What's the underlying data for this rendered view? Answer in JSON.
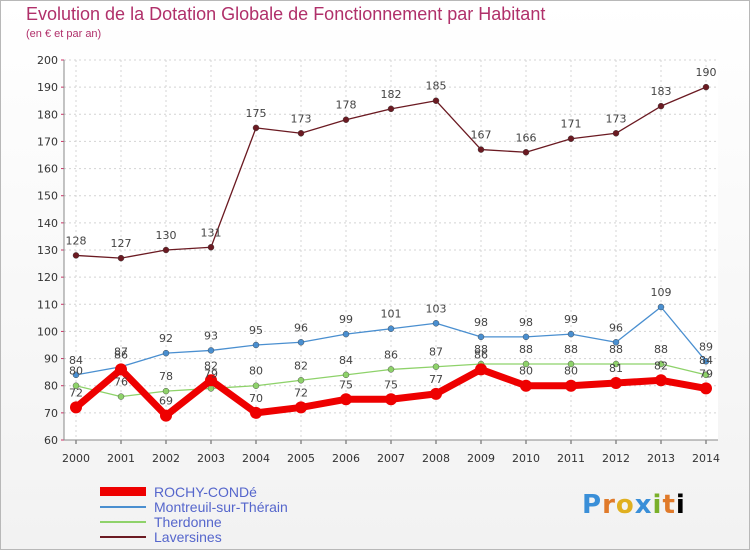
{
  "header": {
    "title": "Evolution de la Dotation Globale de Fonctionnement par Habitant",
    "subtitle": "(en € et par an)"
  },
  "logo": [
    "P",
    "r",
    "o",
    "x",
    "i",
    "t",
    "i"
  ],
  "chart_data": {
    "type": "line",
    "title": "Evolution de la Dotation Globale de Fonctionnement par Habitant",
    "subtitle": "(en € et par an)",
    "xlabel": "",
    "ylabel": "",
    "ylim": [
      60,
      200
    ],
    "yticks": [
      60,
      70,
      80,
      90,
      100,
      110,
      120,
      130,
      140,
      150,
      160,
      170,
      180,
      190,
      200
    ],
    "categories": [
      "2000",
      "2001",
      "2002",
      "2003",
      "2004",
      "2005",
      "2006",
      "2007",
      "2008",
      "2009",
      "2010",
      "2011",
      "2012",
      "2013",
      "2014"
    ],
    "grid": true,
    "legend_position": "bottom-left",
    "series": [
      {
        "name": "ROCHY-CONDé",
        "color": "#ee0000",
        "values": [
          72,
          86,
          69,
          82,
          70,
          72,
          75,
          75,
          77,
          86,
          80,
          80,
          81,
          82,
          79
        ]
      },
      {
        "name": "Montreuil-sur-Thérain",
        "color": "#4a8fd0",
        "values": [
          84,
          87,
          92,
          93,
          95,
          96,
          99,
          101,
          103,
          98,
          98,
          99,
          96,
          109,
          89
        ]
      },
      {
        "name": "Therdonne",
        "color": "#8ed26a",
        "values": [
          80,
          76,
          78,
          79,
          80,
          82,
          84,
          86,
          87,
          88,
          88,
          88,
          88,
          88,
          84
        ]
      },
      {
        "name": "Laversines",
        "color": "#6b1a22",
        "values": [
          128,
          127,
          130,
          131,
          175,
          173,
          178,
          182,
          185,
          167,
          166,
          171,
          173,
          183,
          190
        ]
      }
    ]
  }
}
